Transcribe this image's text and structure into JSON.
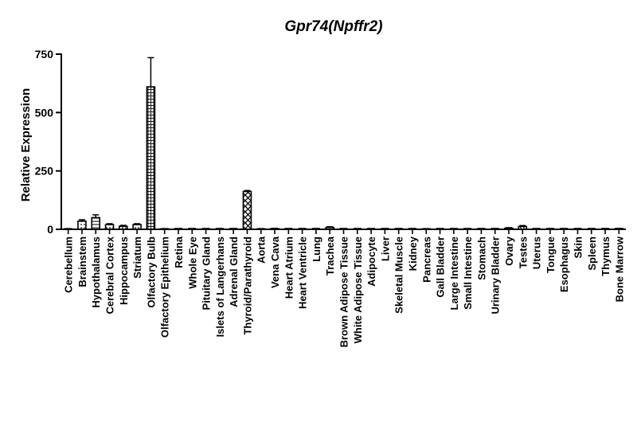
{
  "chart_data": {
    "type": "bar",
    "title": "Gpr74(Npffr2)",
    "xlabel": "",
    "ylabel": "Relative Expression",
    "ylim": [
      0,
      750
    ],
    "yticks": [
      0,
      250,
      500,
      750
    ],
    "grid": false,
    "categories": [
      "Cerebellum",
      "Brainstem",
      "Hypothalamus",
      "Cerebral Cortex",
      "Hippocampus",
      "Striatum",
      "Olfactory Bulb",
      "Olfactory Epithelium",
      "Retina",
      "Whole Eye",
      "Pituitary Gland",
      "Islets of Langerhans",
      "Adrenal Gland",
      "Thyroid/Parathyroid",
      "Aorta",
      "Vena Cava",
      "Heart Atrium",
      "Heart Ventricle",
      "Lung",
      "Trachea",
      "Brown Adipose Tissue",
      "White Adipose Tissue",
      "Adipocyte",
      "Liver",
      "Skeletal Muscle",
      "Kidney",
      "Pancreas",
      "Gall Bladder",
      "Large Intestine",
      "Small Intestine",
      "Stomach",
      "Urinary Bladder",
      "Ovary",
      "Testes",
      "Uterus",
      "Tongue",
      "Esophagus",
      "Skin",
      "Spleen",
      "Thymus",
      "Bone Marrow"
    ],
    "values": [
      2,
      35,
      50,
      20,
      13,
      20,
      610,
      2,
      0,
      0,
      0,
      0,
      0,
      162,
      2,
      3,
      0,
      0,
      0,
      8,
      0,
      0,
      0,
      0,
      0,
      0,
      2,
      0,
      0,
      0,
      0,
      0,
      5,
      12,
      0,
      0,
      0,
      0,
      0,
      0,
      3
    ],
    "errors": [
      1,
      6,
      12,
      4,
      4,
      4,
      125,
      1,
      0,
      0,
      0,
      0,
      0,
      4,
      1,
      1,
      0,
      0,
      0,
      3,
      0,
      0,
      0,
      0,
      0,
      0,
      1,
      0,
      0,
      0,
      0,
      0,
      2,
      4,
      0,
      0,
      0,
      0,
      0,
      0,
      1
    ],
    "patterns": [
      "dots",
      "dots",
      "hlines",
      "dots",
      "dots",
      "dots",
      "grid",
      "dots",
      "none",
      "none",
      "none",
      "none",
      "none",
      "crosshatch",
      "none",
      "none",
      "none",
      "none",
      "none",
      "dots",
      "none",
      "none",
      "none",
      "none",
      "none",
      "none",
      "none",
      "none",
      "none",
      "none",
      "none",
      "none",
      "dots",
      "dots",
      "none",
      "none",
      "none",
      "none",
      "none",
      "none",
      "dots"
    ]
  }
}
